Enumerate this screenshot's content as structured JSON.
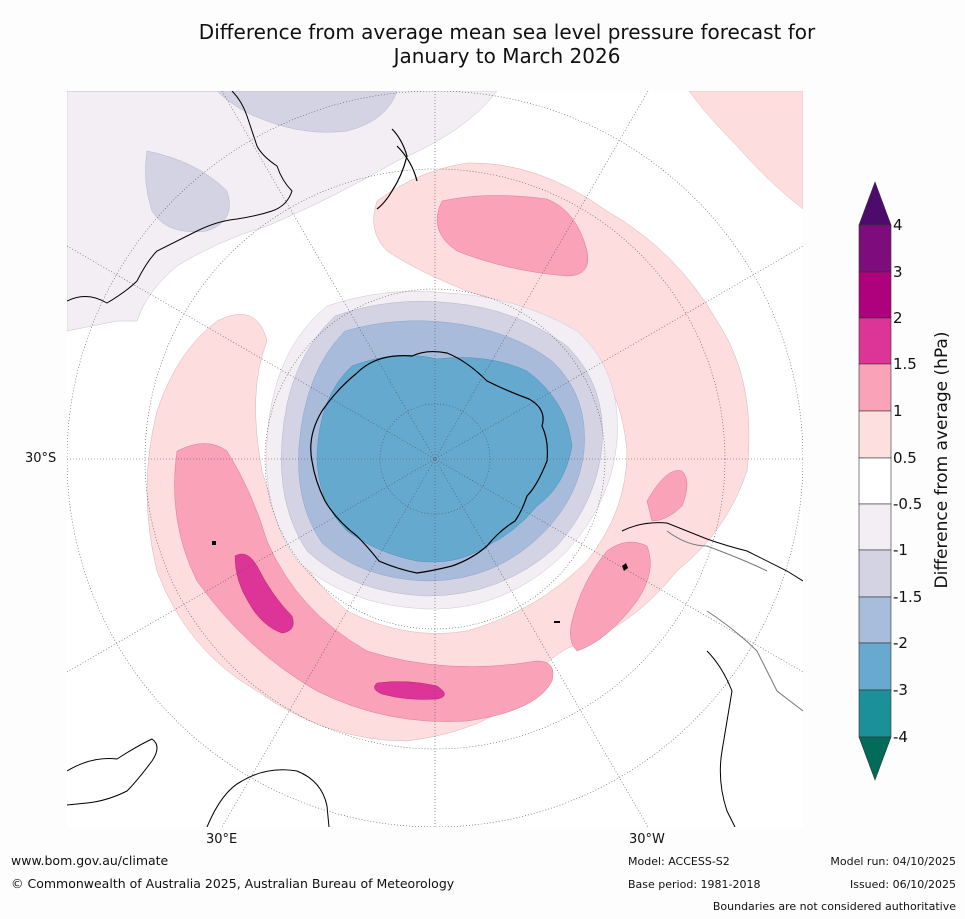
{
  "title": {
    "line1": "Difference from average mean sea level pressure forecast for",
    "line2": "January to March 2026"
  },
  "map": {
    "projection": "south-polar-stereographic",
    "lat_label_left": "30°S",
    "lon_label_bottom_left": "30°E",
    "lon_label_bottom_right": "30°W",
    "anomaly_regions": [
      {
        "name": "antarctic-low",
        "category": "-3 to -2",
        "color": "#66a9cf"
      },
      {
        "name": "antarctic-low-outer",
        "category": "-2 to -1.5",
        "color": "#a9bbdb"
      },
      {
        "name": "pacific-high-ring",
        "category": "1 to 1.5",
        "color": "#fdddde"
      },
      {
        "name": "indian-ocean-high-core",
        "category": "1.5 to 2",
        "color": "#f9a2b8"
      },
      {
        "name": "indian-ocean-high-peak",
        "category": "2 to 3",
        "color": "#de3c9b"
      }
    ]
  },
  "colorbar": {
    "label": "Difference from average (hPa)",
    "ticks": [
      "4",
      "3",
      "2",
      "1.5",
      "1",
      "0.5",
      "-0.5",
      "-1",
      "-1.5",
      "-2",
      "-3",
      "-4"
    ],
    "colors": {
      "above_4": "#4d0c6b",
      "3_to_4": "#7e0c7c",
      "2_to_3": "#ae017e",
      "1.5_to_2": "#dd3497",
      "1_to_1.5": "#f9a2b8",
      "0.5_to_1": "#fddfe0",
      "neutral": "#ffffff",
      "-1_to_-0.5": "#f2eef3",
      "-1.5_to_-1": "#d3d3e4",
      "-2_to_-1.5": "#a8bcdb",
      "-3_to_-2": "#67a9cf",
      "-4_to_-3": "#1c9099",
      "below_-4": "#016c59"
    }
  },
  "footer": {
    "website": "www.bom.gov.au/climate",
    "copyright": "© Commonwealth of Australia 2025, Australian Bureau of Meteorology",
    "model": "Model: ACCESS-S2",
    "base_period": "Base period: 1981-2018",
    "model_run": "Model run: 04/10/2025",
    "issued": "Issued: 06/10/2025",
    "disclaimer": "Boundaries are not considered authoritative"
  }
}
